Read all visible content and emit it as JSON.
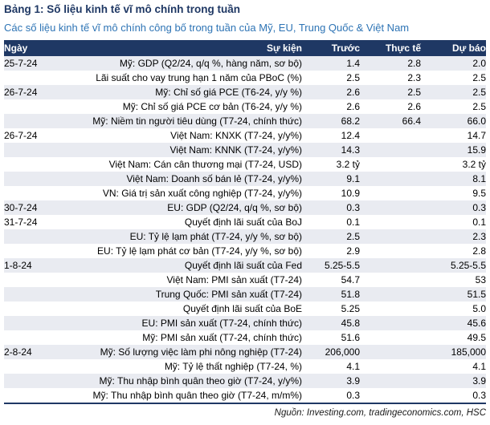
{
  "title": "Bảng 1: Số liệu kinh tế vĩ mô chính trong tuần",
  "subtitle": "Các số liệu kinh tế vĩ mô chính công bố trong tuần của Mỹ, EU, Trung Quốc & Việt Nam",
  "colors": {
    "header_bg": "#1F3864",
    "title_navy": "#1F3864",
    "subtitle_blue": "#2E74B5",
    "row_alt": "#E9EBF1",
    "bottom_border": "#1F3864"
  },
  "table": {
    "columns": [
      "Ngày",
      "Sự kiện",
      "Trước",
      "Thực tế",
      "Dự báo"
    ],
    "rows": [
      {
        "date": "25-7-24",
        "event": "Mỹ: GDP (Q2/24, q/q %, hàng năm, sơ bộ)",
        "prev": "1.4",
        "actual": "2.8",
        "forecast": "2.0"
      },
      {
        "date": "",
        "event": "Lãi suất cho vay trung hạn 1 năm của PBoC (%)",
        "prev": "2.5",
        "actual": "2.3",
        "forecast": "2.5"
      },
      {
        "date": "26-7-24",
        "event": "Mỹ: Chỉ số giá PCE (T6-24, y/y %)",
        "prev": "2.6",
        "actual": "2.5",
        "forecast": "2.5"
      },
      {
        "date": "",
        "event": "Mỹ: Chỉ số giá PCE cơ bản (T6-24, y/y %)",
        "prev": "2.6",
        "actual": "2.6",
        "forecast": "2.5"
      },
      {
        "date": "",
        "event": "Mỹ: Niềm tin người tiêu dùng (T7-24, chính thức)",
        "prev": "68.2",
        "actual": "66.4",
        "forecast": "66.0"
      },
      {
        "date": "26-7-24",
        "event": "Việt Nam: KNXK (T7-24, y/y%)",
        "prev": "12.4",
        "actual": "",
        "forecast": "14.7"
      },
      {
        "date": "",
        "event": "Việt Nam: KNNK (T7-24, y/y%)",
        "prev": "14.3",
        "actual": "",
        "forecast": "15.9"
      },
      {
        "date": "",
        "event": "Việt Nam: Cán cân thương mại (T7-24, USD)",
        "prev": "3.2 tỷ",
        "actual": "",
        "forecast": "3.2 tỷ"
      },
      {
        "date": "",
        "event": "Việt Nam: Doanh số bán lẻ (T7-24, y/y%)",
        "prev": "9.1",
        "actual": "",
        "forecast": "8.1"
      },
      {
        "date": "",
        "event": "VN: Giá trị sản xuất công nghiệp (T7-24, y/y%)",
        "prev": "10.9",
        "actual": "",
        "forecast": "9.5"
      },
      {
        "date": "30-7-24",
        "event": "EU: GDP (Q2/24, q/q %, sơ bộ)",
        "prev": "0.3",
        "actual": "",
        "forecast": "0.3"
      },
      {
        "date": "31-7-24",
        "event": "Quyết định lãi suất của BoJ",
        "prev": "0.1",
        "actual": "",
        "forecast": "0.1"
      },
      {
        "date": "",
        "event": "EU: Tỷ lệ lạm phát (T7-24, y/y %, sơ bộ)",
        "prev": "2.5",
        "actual": "",
        "forecast": "2.3"
      },
      {
        "date": "",
        "event": "EU: Tỷ lệ lạm phát cơ bản (T7-24, y/y %, sơ bộ)",
        "prev": "2.9",
        "actual": "",
        "forecast": "2.8"
      },
      {
        "date": "1-8-24",
        "event": "Quyết định lãi suất của Fed",
        "prev": "5.25-5.5",
        "actual": "",
        "forecast": "5.25-5.5"
      },
      {
        "date": "",
        "event": "Việt Nam: PMI sản xuất (T7-24)",
        "prev": "54.7",
        "actual": "",
        "forecast": "53"
      },
      {
        "date": "",
        "event": "Trung Quốc: PMI sản xuất (T7-24)",
        "prev": "51.8",
        "actual": "",
        "forecast": "51.5"
      },
      {
        "date": "",
        "event": "Quyết định lãi suất của BoE",
        "prev": "5.25",
        "actual": "",
        "forecast": "5.0"
      },
      {
        "date": "",
        "event": "EU: PMI sản xuất (T7-24, chính thức)",
        "prev": "45.8",
        "actual": "",
        "forecast": "45.6"
      },
      {
        "date": "",
        "event": "Mỹ: PMI sản xuất (T7-24, chính thức)",
        "prev": "51.6",
        "actual": "",
        "forecast": "49.5"
      },
      {
        "date": "2-8-24",
        "event": "Mỹ: Số lượng việc làm phi nông nghiệp (T7-24)",
        "prev": "206,000",
        "actual": "",
        "forecast": "185,000"
      },
      {
        "date": "",
        "event": "Mỹ: Tỷ lệ thất nghiệp (T7-24, %)",
        "prev": "4.1",
        "actual": "",
        "forecast": "4.1"
      },
      {
        "date": "",
        "event": "Mỹ: Thu nhập bình quân theo giờ (T7-24, y/y%)",
        "prev": "3.9",
        "actual": "",
        "forecast": "3.9"
      },
      {
        "date": "",
        "event": "Mỹ: Thu nhập bình quân theo giờ (T7-24, m/m%)",
        "prev": "0.3",
        "actual": "",
        "forecast": "0.3"
      }
    ]
  },
  "footer": {
    "source": "Nguồn: Investing.com, tradingeconomics.com, HSC"
  }
}
